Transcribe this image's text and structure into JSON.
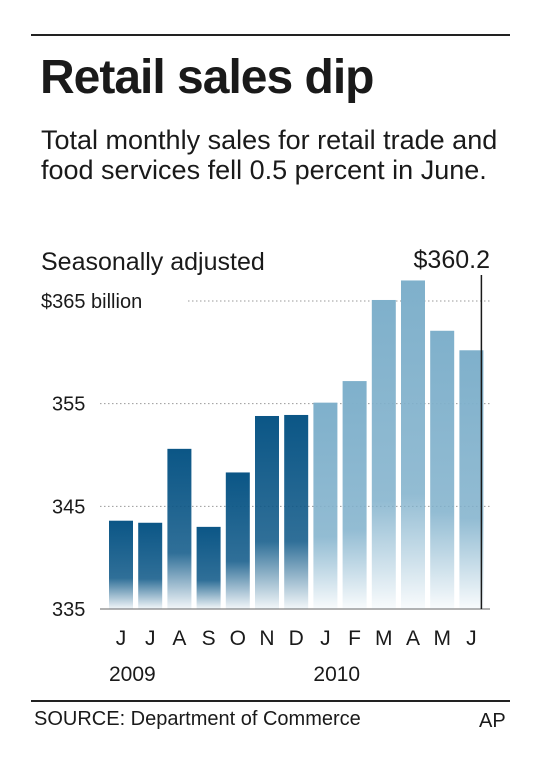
{
  "header": {
    "title": "Retail sales dip",
    "subtitle": "Total monthly sales for retail trade and food services fell 0.5 percent in June.",
    "note": "Seasonally adjusted"
  },
  "footer": {
    "source": "SOURCE: Department of Commerce",
    "credit": "AP"
  },
  "colors": {
    "bar_2009": "#0b5686",
    "bar_2010": "#7fb0cb",
    "axis": "#999999"
  },
  "chart_data": {
    "type": "bar",
    "title": "Retail sales dip",
    "ylabel": "Seasonally adjusted",
    "y_unit": "billion",
    "ylim": [
      335,
      368
    ],
    "yticks": [
      335,
      345,
      355,
      365
    ],
    "ytick_labels": [
      "335",
      "345",
      "355",
      "$365 billion"
    ],
    "categories": [
      "J",
      "J",
      "A",
      "S",
      "O",
      "N",
      "D",
      "J",
      "F",
      "M",
      "A",
      "M",
      "J"
    ],
    "years": [
      {
        "label": "2009",
        "start_index": 0
      },
      {
        "label": "2010",
        "start_index": 7
      }
    ],
    "values": [
      343.6,
      343.4,
      350.6,
      343.0,
      348.3,
      353.8,
      353.9,
      355.1,
      357.2,
      365.1,
      367.0,
      362.1,
      360.2
    ],
    "groups": [
      0,
      0,
      0,
      0,
      0,
      0,
      0,
      1,
      1,
      1,
      1,
      1,
      1
    ],
    "annotation": {
      "index": 12,
      "label": "$360.2"
    },
    "grid": true,
    "legend": "none"
  }
}
